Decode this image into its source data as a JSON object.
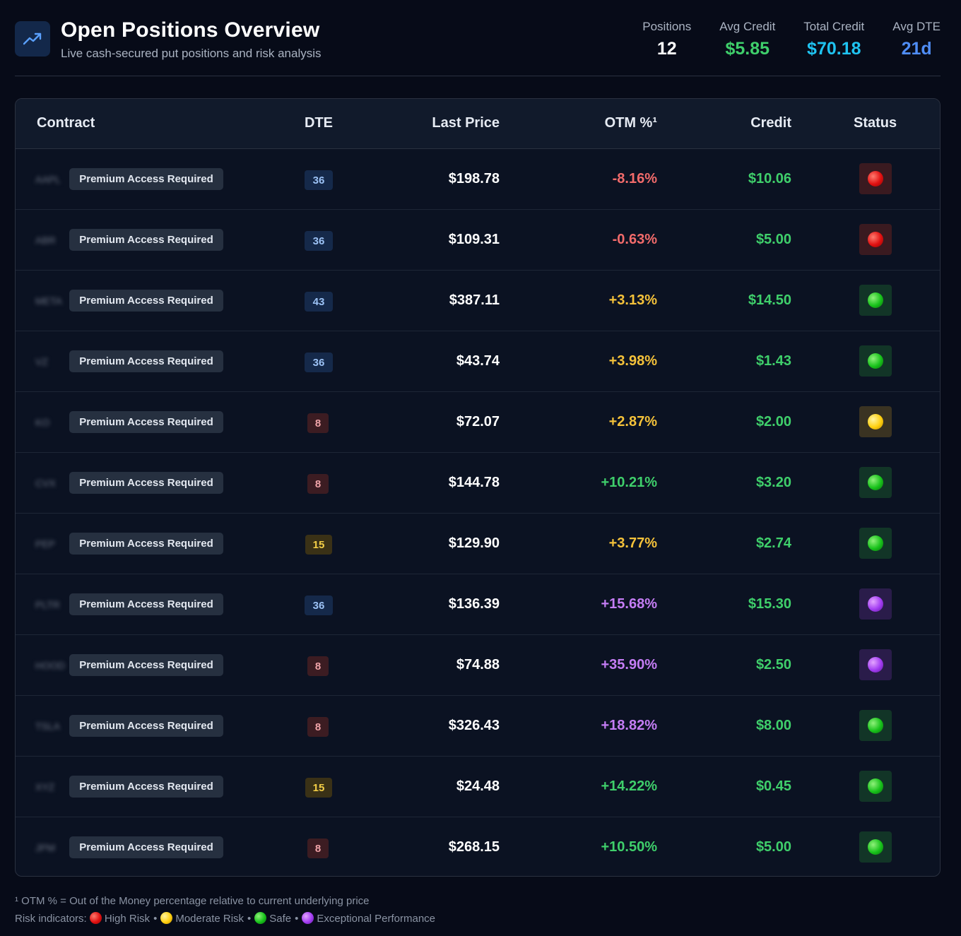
{
  "header": {
    "icon": "trending-up-icon",
    "title": "Open Positions Overview",
    "subtitle": "Live cash-secured put positions and risk analysis"
  },
  "stats": [
    {
      "label": "Positions",
      "value": "12",
      "color": "#ffffff"
    },
    {
      "label": "Avg Credit",
      "value": "$5.85",
      "color": "#3fcf6b"
    },
    {
      "label": "Total Credit",
      "value": "$70.18",
      "color": "#1fc3f0"
    },
    {
      "label": "Avg DTE",
      "value": "21d",
      "color": "#4f8df5"
    }
  ],
  "table": {
    "columns": [
      "Contract",
      "DTE",
      "Last Price",
      "OTM %¹",
      "Credit",
      "Status"
    ],
    "premium_label": "Premium Access Required",
    "rows": [
      {
        "ticker": "AAPL",
        "dte": "36",
        "dte_class": "long",
        "price": "$198.78",
        "otm": "-8.16%",
        "otm_color": "#f26b6b",
        "credit": "$10.06",
        "status": "red"
      },
      {
        "ticker": "ABR",
        "dte": "36",
        "dte_class": "long",
        "price": "$109.31",
        "otm": "-0.63%",
        "otm_color": "#f26b6b",
        "credit": "$5.00",
        "status": "red"
      },
      {
        "ticker": "META",
        "dte": "43",
        "dte_class": "long",
        "price": "$387.11",
        "otm": "+3.13%",
        "otm_color": "#f5c23a",
        "credit": "$14.50",
        "status": "green"
      },
      {
        "ticker": "VZ",
        "dte": "36",
        "dte_class": "long",
        "price": "$43.74",
        "otm": "+3.98%",
        "otm_color": "#f5c23a",
        "credit": "$1.43",
        "status": "green"
      },
      {
        "ticker": "KO",
        "dte": "8",
        "dte_class": "short",
        "price": "$72.07",
        "otm": "+2.87%",
        "otm_color": "#f5c23a",
        "credit": "$2.00",
        "status": "yellow"
      },
      {
        "ticker": "CVX",
        "dte": "8",
        "dte_class": "short",
        "price": "$144.78",
        "otm": "+10.21%",
        "otm_color": "#3fcf6b",
        "credit": "$3.20",
        "status": "green"
      },
      {
        "ticker": "PEP",
        "dte": "15",
        "dte_class": "med",
        "price": "$129.90",
        "otm": "+3.77%",
        "otm_color": "#f5c23a",
        "credit": "$2.74",
        "status": "green"
      },
      {
        "ticker": "PLTR",
        "dte": "36",
        "dte_class": "long",
        "price": "$136.39",
        "otm": "+15.68%",
        "otm_color": "#c57df5",
        "credit": "$15.30",
        "status": "purple"
      },
      {
        "ticker": "HOOD",
        "dte": "8",
        "dte_class": "short",
        "price": "$74.88",
        "otm": "+35.90%",
        "otm_color": "#c57df5",
        "credit": "$2.50",
        "status": "purple"
      },
      {
        "ticker": "TSLA",
        "dte": "8",
        "dte_class": "short",
        "price": "$326.43",
        "otm": "+18.82%",
        "otm_color": "#c57df5",
        "credit": "$8.00",
        "status": "green"
      },
      {
        "ticker": "XYZ",
        "dte": "15",
        "dte_class": "med",
        "price": "$24.48",
        "otm": "+14.22%",
        "otm_color": "#3fcf6b",
        "credit": "$0.45",
        "status": "green"
      },
      {
        "ticker": "JPM",
        "dte": "8",
        "dte_class": "short",
        "price": "$268.15",
        "otm": "+10.50%",
        "otm_color": "#3fcf6b",
        "credit": "$5.00",
        "status": "green"
      }
    ]
  },
  "footer": {
    "note": "¹ OTM % = Out of the Money percentage relative to current underlying price",
    "legend_prefix": "Risk indicators:",
    "legend": [
      {
        "status": "red",
        "label": "High Risk"
      },
      {
        "status": "yellow",
        "label": "Moderate Risk"
      },
      {
        "status": "green",
        "label": "Safe"
      },
      {
        "status": "purple",
        "label": "Exceptional Performance"
      }
    ]
  }
}
